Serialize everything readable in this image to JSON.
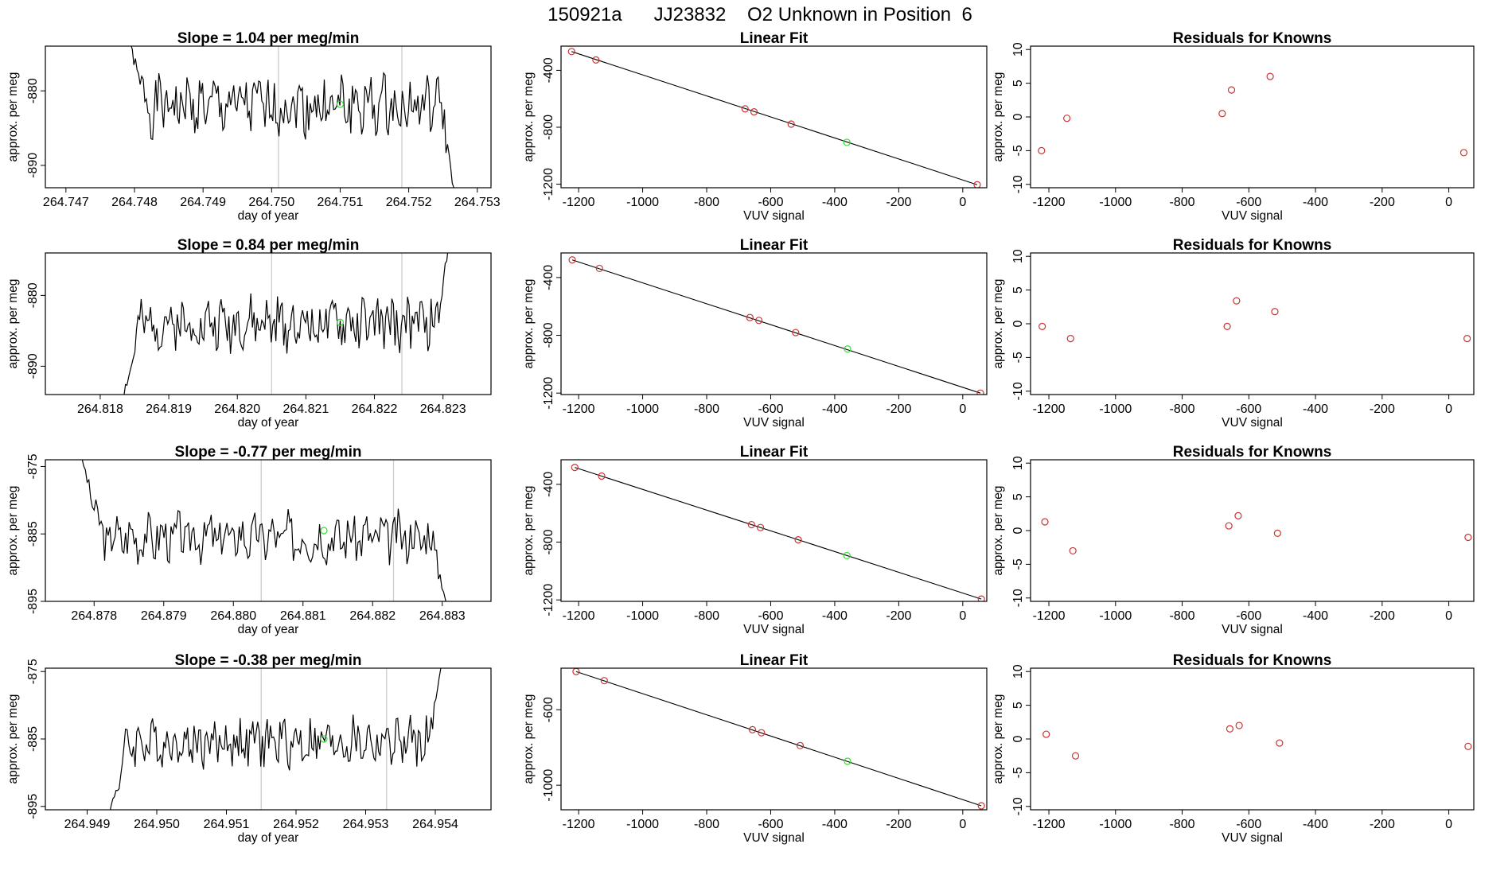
{
  "page": {
    "title": "150921a      JJ23832    O2 Unknown in Position  6"
  },
  "colors": {
    "trace": "#000000",
    "fit_line": "#000000",
    "known_point": "#cc3333",
    "unknown_point": "#33dd33",
    "window_marker": "#cccccc",
    "frame": "#000000"
  },
  "chart_data": [
    {
      "id": "r0-ts",
      "type": "line",
      "title": "Slope =  1.04  per meg/min",
      "xlabel": "day of year",
      "ylabel": "approx. per meg",
      "xlim": [
        264.7467,
        264.7532
      ],
      "ylim": [
        -893,
        -874
      ],
      "xticks": [
        264.747,
        264.748,
        264.749,
        264.75,
        264.751,
        264.752,
        264.753
      ],
      "xtick_labels": [
        "264.747",
        "264.748",
        "264.749",
        "264.750",
        "264.751",
        "264.752",
        "264.753"
      ],
      "yticks": [
        -880,
        -890
      ],
      "ytick_labels": [
        "-880",
        "-890"
      ],
      "trace": {
        "start": 264.7479,
        "end": 264.75268,
        "center": -882,
        "amp": 2.6,
        "enter": -873,
        "exit": -895,
        "seed": 1
      },
      "window": [
        264.7501,
        264.7519
      ],
      "unknown": {
        "x": 264.751,
        "y": -881.8
      }
    },
    {
      "id": "r0-fit",
      "type": "scatter",
      "title": "Linear Fit",
      "xlabel": "VUV signal",
      "ylabel": "approx. per meg",
      "xlim": [
        -1255,
        75
      ],
      "ylim": [
        -1225,
        -230
      ],
      "xticks": [
        -1200,
        -1000,
        -800,
        -600,
        -400,
        -200,
        0
      ],
      "xtick_labels": [
        "-1200",
        "-1000",
        "-800",
        "-600",
        "-400",
        "-200",
        "0"
      ],
      "yticks": [
        -400,
        -800,
        -1200
      ],
      "ytick_labels": [
        "-400",
        "-800",
        "-1200"
      ],
      "line": {
        "x": [
          -1222,
          45
        ],
        "y": [
          -268,
          -1204
        ]
      },
      "knowns": [
        {
          "x": -1222,
          "y": -268
        },
        {
          "x": -1146,
          "y": -327
        },
        {
          "x": -680,
          "y": -671
        },
        {
          "x": -652,
          "y": -692
        },
        {
          "x": -536,
          "y": -778
        },
        {
          "x": 45,
          "y": -1204
        }
      ],
      "unknown": {
        "x": -362,
        "y": -906
      }
    },
    {
      "id": "r0-res",
      "type": "scatter",
      "title": "Residuals for Knowns",
      "xlabel": "VUV signal",
      "ylabel": "approx. per meg",
      "xlim": [
        -1255,
        75
      ],
      "ylim": [
        -10.5,
        10.5
      ],
      "xticks": [
        -1200,
        -1000,
        -800,
        -600,
        -400,
        -200,
        0
      ],
      "xtick_labels": [
        "-1200",
        "-1000",
        "-800",
        "-600",
        "-400",
        "-200",
        "0"
      ],
      "yticks": [
        10,
        5,
        0,
        -5,
        -10
      ],
      "ytick_labels": [
        "10",
        "5",
        "0",
        "-5",
        "-10"
      ],
      "knowns": [
        {
          "x": -1222,
          "y": -5.0
        },
        {
          "x": -1146,
          "y": -0.2
        },
        {
          "x": -680,
          "y": 0.5
        },
        {
          "x": -652,
          "y": 4.0
        },
        {
          "x": -536,
          "y": 6.0
        },
        {
          "x": 45,
          "y": -5.3
        }
      ]
    },
    {
      "id": "r1-ts",
      "type": "line",
      "title": "Slope =  0.84  per meg/min",
      "xlabel": "day of year",
      "ylabel": "approx. per meg",
      "xlim": [
        264.8172,
        264.8237
      ],
      "ylim": [
        -894,
        -874
      ],
      "xticks": [
        264.818,
        264.819,
        264.82,
        264.821,
        264.822,
        264.823
      ],
      "xtick_labels": [
        "264.818",
        "264.819",
        "264.820",
        "264.821",
        "264.822",
        "264.823"
      ],
      "yticks": [
        -880,
        -890
      ],
      "ytick_labels": [
        "-880",
        "-890"
      ],
      "trace": {
        "start": 264.8183,
        "end": 264.8231,
        "center": -884,
        "amp": 2.4,
        "enter": -896,
        "exit": -872,
        "seed": 2
      },
      "window": [
        264.8205,
        264.8224
      ],
      "unknown": {
        "x": 264.8215,
        "y": -883.8
      }
    },
    {
      "id": "r1-fit",
      "type": "scatter",
      "title": "Linear Fit",
      "xlabel": "VUV signal",
      "ylabel": "approx. per meg",
      "xlim": [
        -1255,
        75
      ],
      "ylim": [
        -1210,
        -230
      ],
      "xticks": [
        -1200,
        -1000,
        -800,
        -600,
        -400,
        -200,
        0
      ],
      "xtick_labels": [
        "-1200",
        "-1000",
        "-800",
        "-600",
        "-400",
        "-200",
        "0"
      ],
      "yticks": [
        -400,
        -800,
        -1200
      ],
      "ytick_labels": [
        "-400",
        "-800",
        "-1200"
      ],
      "line": {
        "x": [
          -1220,
          55
        ],
        "y": [
          -278,
          -1200
        ]
      },
      "knowns": [
        {
          "x": -1220,
          "y": -278
        },
        {
          "x": -1135,
          "y": -337
        },
        {
          "x": -665,
          "y": -677
        },
        {
          "x": -637,
          "y": -697
        },
        {
          "x": -522,
          "y": -781
        },
        {
          "x": 55,
          "y": -1200
        }
      ],
      "unknown": {
        "x": -360,
        "y": -895
      }
    },
    {
      "id": "r1-res",
      "type": "scatter",
      "title": "Residuals for Knowns",
      "xlabel": "VUV signal",
      "ylabel": "approx. per meg",
      "xlim": [
        -1255,
        75
      ],
      "ylim": [
        -10.5,
        10.5
      ],
      "xticks": [
        -1200,
        -1000,
        -800,
        -600,
        -400,
        -200,
        0
      ],
      "xtick_labels": [
        "-1200",
        "-1000",
        "-800",
        "-600",
        "-400",
        "-200",
        "0"
      ],
      "yticks": [
        10,
        5,
        0,
        -5,
        -10
      ],
      "ytick_labels": [
        "10",
        "5",
        "0",
        "-5",
        "-10"
      ],
      "knowns": [
        {
          "x": -1220,
          "y": -0.4
        },
        {
          "x": -1135,
          "y": -2.2
        },
        {
          "x": -665,
          "y": -0.4
        },
        {
          "x": -637,
          "y": 3.4
        },
        {
          "x": -522,
          "y": 1.8
        },
        {
          "x": 55,
          "y": -2.2
        }
      ]
    },
    {
      "id": "r2-ts",
      "type": "line",
      "title": "Slope =  -0.77  per meg/min",
      "xlabel": "day of year",
      "ylabel": "approx. per meg",
      "xlim": [
        264.8773,
        264.8837
      ],
      "ylim": [
        -895,
        -874
      ],
      "xticks": [
        264.878,
        264.879,
        264.88,
        264.881,
        264.882,
        264.883
      ],
      "xtick_labels": [
        "264.878",
        "264.879",
        "264.880",
        "264.881",
        "264.882",
        "264.883"
      ],
      "yticks": [
        -875,
        -885,
        -895
      ],
      "ytick_labels": [
        "-875",
        "-885",
        "-895"
      ],
      "trace": {
        "start": 264.8778,
        "end": 264.88307,
        "center": -885.5,
        "amp": 2.4,
        "enter": -873,
        "exit": -896,
        "seed": 3
      },
      "window": [
        264.8804,
        264.8823
      ],
      "unknown": {
        "x": 264.8813,
        "y": -884.5
      }
    },
    {
      "id": "r2-fit",
      "type": "scatter",
      "title": "Linear Fit",
      "xlabel": "VUV signal",
      "ylabel": "approx. per meg",
      "xlim": [
        -1255,
        75
      ],
      "ylim": [
        -1210,
        -230
      ],
      "xticks": [
        -1200,
        -1000,
        -800,
        -600,
        -400,
        -200,
        0
      ],
      "xtick_labels": [
        "-1200",
        "-1000",
        "-800",
        "-600",
        "-400",
        "-200",
        "0"
      ],
      "yticks": [
        -400,
        -800,
        -1200
      ],
      "ytick_labels": [
        "-400",
        "-800",
        "-1200"
      ],
      "line": {
        "x": [
          -1212,
          58
        ],
        "y": [
          -283,
          -1194
        ]
      },
      "knowns": [
        {
          "x": -1212,
          "y": -283
        },
        {
          "x": -1128,
          "y": -343
        },
        {
          "x": -660,
          "y": -679
        },
        {
          "x": -632,
          "y": -699
        },
        {
          "x": -514,
          "y": -784
        },
        {
          "x": 58,
          "y": -1194
        }
      ],
      "unknown": {
        "x": -362,
        "y": -893
      }
    },
    {
      "id": "r2-res",
      "type": "scatter",
      "title": "Residuals for Knowns",
      "xlabel": "VUV signal",
      "ylabel": "approx. per meg",
      "xlim": [
        -1255,
        75
      ],
      "ylim": [
        -10.5,
        10.5
      ],
      "xticks": [
        -1200,
        -1000,
        -800,
        -600,
        -400,
        -200,
        0
      ],
      "xtick_labels": [
        "-1200",
        "-1000",
        "-800",
        "-600",
        "-400",
        "-200",
        "0"
      ],
      "yticks": [
        10,
        5,
        0,
        -5,
        -10
      ],
      "ytick_labels": [
        "10",
        "5",
        "0",
        "-5",
        "-10"
      ],
      "knowns": [
        {
          "x": -1212,
          "y": 1.3
        },
        {
          "x": -1128,
          "y": -3.0
        },
        {
          "x": -660,
          "y": 0.7
        },
        {
          "x": -632,
          "y": 2.2
        },
        {
          "x": -514,
          "y": -0.4
        },
        {
          "x": 58,
          "y": -1.0
        }
      ]
    },
    {
      "id": "r3-ts",
      "type": "line",
      "title": "Slope =  -0.38  per meg/min",
      "xlabel": "day of year",
      "ylabel": "approx. per meg",
      "xlim": [
        264.9484,
        264.9548
      ],
      "ylim": [
        -895.5,
        -874.5
      ],
      "xticks": [
        264.949,
        264.95,
        264.951,
        264.952,
        264.953,
        264.954
      ],
      "xtick_labels": [
        "264.949",
        "264.950",
        "264.951",
        "264.952",
        "264.953",
        "264.954"
      ],
      "yticks": [
        -875,
        -885,
        -895
      ],
      "ytick_labels": [
        "-875",
        "-885",
        "-895"
      ],
      "trace": {
        "start": 264.9493,
        "end": 264.9541,
        "center": -885.5,
        "amp": 2.4,
        "enter": -897,
        "exit": -873,
        "seed": 4
      },
      "window": [
        264.9515,
        264.9533
      ],
      "unknown": {
        "x": 264.9524,
        "y": -885
      }
    },
    {
      "id": "r3-fit",
      "type": "scatter",
      "title": "Linear Fit",
      "xlabel": "VUV signal",
      "ylabel": "approx. per meg",
      "xlim": [
        -1255,
        75
      ],
      "ylim": [
        -1130,
        -380
      ],
      "xticks": [
        -1200,
        -1000,
        -800,
        -600,
        -400,
        -200,
        0
      ],
      "xtick_labels": [
        "-1200",
        "-1000",
        "-800",
        "-600",
        "-400",
        "-200",
        "0"
      ],
      "yticks": [
        -600,
        -1000
      ],
      "ytick_labels": [
        "-600",
        "-1000"
      ],
      "line": {
        "x": [
          -1208,
          58
        ],
        "y": [
          -398,
          -1109
        ]
      },
      "knowns": [
        {
          "x": -1208,
          "y": -398
        },
        {
          "x": -1120,
          "y": -446
        },
        {
          "x": -657,
          "y": -706
        },
        {
          "x": -629,
          "y": -722
        },
        {
          "x": -508,
          "y": -790
        },
        {
          "x": 58,
          "y": -1109
        }
      ],
      "unknown": {
        "x": -360,
        "y": -873
      }
    },
    {
      "id": "r3-res",
      "type": "scatter",
      "title": "Residuals for Knowns",
      "xlabel": "VUV signal",
      "ylabel": "approx. per meg",
      "xlim": [
        -1255,
        75
      ],
      "ylim": [
        -10.5,
        10.5
      ],
      "xticks": [
        -1200,
        -1000,
        -800,
        -600,
        -400,
        -200,
        0
      ],
      "xtick_labels": [
        "-1200",
        "-1000",
        "-800",
        "-600",
        "-400",
        "-200",
        "0"
      ],
      "yticks": [
        10,
        5,
        0,
        -5,
        -10
      ],
      "ytick_labels": [
        "10",
        "5",
        "0",
        "-5",
        "-10"
      ],
      "knowns": [
        {
          "x": -1208,
          "y": 0.7
        },
        {
          "x": -1120,
          "y": -2.5
        },
        {
          "x": -657,
          "y": 1.5
        },
        {
          "x": -629,
          "y": 2.0
        },
        {
          "x": -508,
          "y": -0.6
        },
        {
          "x": 58,
          "y": -1.1
        }
      ]
    }
  ]
}
